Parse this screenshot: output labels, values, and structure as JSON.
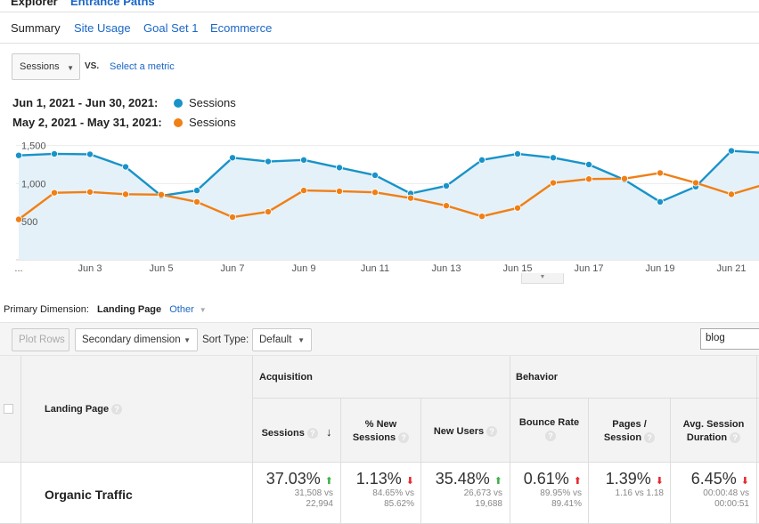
{
  "tabs": {
    "explorer": "Explorer",
    "entrance_paths": "Entrance Paths"
  },
  "subtabs": [
    "Summary",
    "Site Usage",
    "Goal Set 1",
    "Ecommerce"
  ],
  "metric": {
    "selected": "Sessions",
    "vs": "VS.",
    "select_metric": "Select a metric"
  },
  "legend": [
    {
      "range": "Jun 1, 2021 - Jun 30, 2021:",
      "series": "Sessions",
      "color": "#1893c9"
    },
    {
      "range": "May 2, 2021 - May 31, 2021:",
      "series": "Sessions",
      "color": "#f07f15"
    }
  ],
  "chart_data": {
    "type": "line",
    "x": [
      "Jun 1",
      "Jun 2",
      "Jun 3",
      "Jun 4",
      "Jun 5",
      "Jun 6",
      "Jun 7",
      "Jun 8",
      "Jun 9",
      "Jun 10",
      "Jun 11",
      "Jun 12",
      "Jun 13",
      "Jun 14",
      "Jun 15",
      "Jun 16",
      "Jun 17",
      "Jun 18",
      "Jun 19",
      "Jun 20",
      "Jun 21",
      "Jun 22"
    ],
    "x_tick_labels": [
      "...",
      "Jun 3",
      "Jun 5",
      "Jun 7",
      "Jun 9",
      "Jun 11",
      "Jun 13",
      "Jun 15",
      "Jun 17",
      "Jun 19",
      "Jun 21"
    ],
    "y_tick_labels": [
      "1,500",
      "1,000",
      "500"
    ],
    "ylim": [
      0,
      1600
    ],
    "grid": true,
    "series": [
      {
        "name": "Sessions",
        "color": "#1893c9",
        "fill": true,
        "values": [
          1370,
          1390,
          1385,
          1220,
          840,
          910,
          1340,
          1290,
          1310,
          1210,
          1110,
          870,
          970,
          1310,
          1390,
          1340,
          1250,
          1050,
          760,
          960,
          1430,
          1400
        ]
      },
      {
        "name": "Sessions",
        "color": "#f07f15",
        "fill": false,
        "values": [
          530,
          880,
          890,
          860,
          855,
          760,
          560,
          630,
          910,
          900,
          885,
          810,
          710,
          570,
          680,
          1010,
          1060,
          1065,
          1140,
          1010,
          860,
          1000
        ]
      }
    ]
  },
  "collapse_glyph": "▼",
  "dimension": {
    "label": "Primary Dimension:",
    "active": "Landing Page",
    "other": "Other"
  },
  "toolbar": {
    "plot_rows": "Plot Rows",
    "secondary": "Secondary dimension",
    "sort_label": "Sort Type:",
    "sort_value": "Default",
    "search_value": "blog"
  },
  "table": {
    "dimension_header": "Landing Page",
    "groups": {
      "acquisition": "Acquisition",
      "behavior": "Behavior"
    },
    "columns": [
      {
        "label1": "Sessions",
        "label2": "",
        "sort_arrow": "↓"
      },
      {
        "label1": "% New",
        "label2": "Sessions"
      },
      {
        "label1": "New Users",
        "label2": ""
      },
      {
        "label1": "Bounce Rate",
        "label2": ""
      },
      {
        "label1": "Pages /",
        "label2": "Session"
      },
      {
        "label1": "Avg. Session",
        "label2": "Duration"
      }
    ],
    "row": {
      "label": "Organic Traffic",
      "cells": [
        {
          "value": "37.03%",
          "dir": "up",
          "color": "#3eb04a",
          "sub1": "31,508 vs",
          "sub2": "22,994"
        },
        {
          "value": "1.13%",
          "dir": "down",
          "color": "#e8262d",
          "sub1": "84.65% vs",
          "sub2": "85.62%"
        },
        {
          "value": "35.48%",
          "dir": "up",
          "color": "#3eb04a",
          "sub1": "26,673 vs",
          "sub2": "19,688"
        },
        {
          "value": "0.61%",
          "dir": "up",
          "color": "#e8262d",
          "sub1": "89.95% vs",
          "sub2": "89.41%"
        },
        {
          "value": "1.39%",
          "dir": "down",
          "color": "#e8262d",
          "sub1": "1.16 vs 1.18",
          "sub2": ""
        },
        {
          "value": "6.45%",
          "dir": "down",
          "color": "#e8262d",
          "sub1": "00:00:48 vs",
          "sub2": "00:00:51"
        }
      ]
    }
  }
}
